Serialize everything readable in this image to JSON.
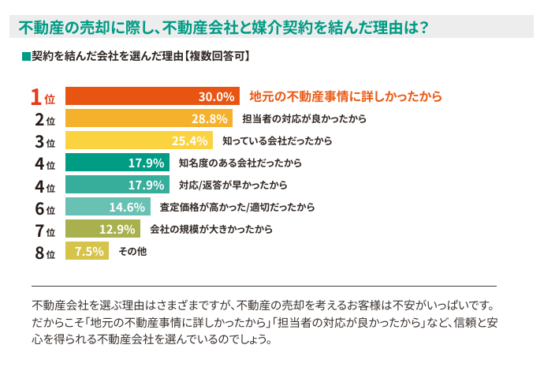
{
  "header": {
    "title": "不動産の売却に際し、不動産会社と媒介契約を結んだ理由は？"
  },
  "subtitle": {
    "bullet_icon": "square-bullet",
    "label": "契約を結んだ会社を選んだ理由【複数回答可】"
  },
  "chart_data": {
    "type": "bar",
    "orientation": "horizontal",
    "title": "契約を結んだ会社を選んだ理由【複数回答可】",
    "unit": "%",
    "xlim": [
      0,
      30
    ],
    "categories": [
      "地元の不動産事情に詳しかったから",
      "担当者の対応が良かったから",
      "知っている会社だったから",
      "知名度のある会社だったから",
      "対応/返答が早かったから",
      "査定価格が高かった/適切だったから",
      "会社の規模が大きかったから",
      "その他"
    ],
    "values": [
      30.0,
      28.8,
      25.4,
      17.9,
      17.9,
      14.6,
      12.9,
      7.5
    ],
    "value_labels": [
      "30.0%",
      "28.8%",
      "25.4%",
      "17.9%",
      "17.9%",
      "14.6%",
      "12.9%",
      "7.5%"
    ],
    "ranks": [
      "1",
      "2",
      "3",
      "4",
      "4",
      "6",
      "7",
      "8"
    ],
    "rank_suffix": "位",
    "bar_colors": [
      "#e85513",
      "#f6b12c",
      "#fbd23f",
      "#009c84",
      "#37ad9b",
      "#68c1b2",
      "#a8b14e",
      "#d6c44a"
    ],
    "highlight_row": 0,
    "legend": null,
    "grid": false
  },
  "footer": {
    "lines": [
      "不動産会社を選ぶ理由はさまざまですが、不動産の売却を考えるお客様は不安がいっぱいです。",
      "だからこそ「地元の不動産事情に詳しかったから」「担当者の対応が良かったから」など、信頼と安",
      "心を得られる不動産会社を選んでいるのでしょう。"
    ]
  },
  "colors": {
    "title_text": "#009b85",
    "title_band_bg": "#ededed",
    "subtitle_bullet": "#009b85",
    "subtitle_text": "#2e2724",
    "rank_highlight": "#e33a1a",
    "rank_default": "#251c18",
    "bar_value_text": "#ffffff",
    "category_default": "#332b27",
    "category_highlight": "#e95c17",
    "footer_text": "#3a332f",
    "divider": "#3c3c3c",
    "page_bg": "#ffffff"
  }
}
